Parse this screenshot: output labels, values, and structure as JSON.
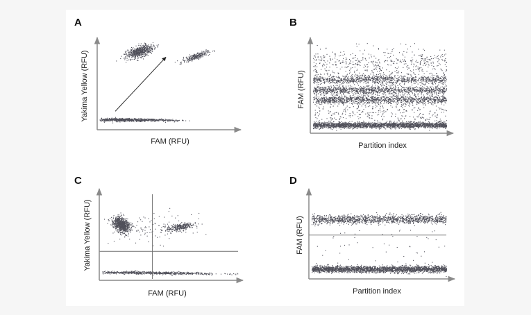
{
  "figure": {
    "panels": [
      "A",
      "B",
      "C",
      "D"
    ]
  },
  "colors": {
    "dots": "#50505a",
    "axis": "#8a8a8a",
    "threshold": "#6e6e6e"
  },
  "chart_data": [
    {
      "panel": "A",
      "type": "scatter",
      "xlabel": "FAM  (RFU)",
      "ylabel": "Yakima Yellow (RFU)",
      "xlim": [
        0,
        100
      ],
      "ylim": [
        0,
        100
      ],
      "ticks": false,
      "grid": false,
      "clusters": [
        {
          "cx": 18,
          "cy": 8,
          "sx": 14,
          "sy": 0.9,
          "rot": -1,
          "n": 700
        },
        {
          "cx": 30,
          "cy": 90,
          "sx": 5.5,
          "sy": 2.8,
          "rot": 34,
          "n": 650
        },
        {
          "cx": 72,
          "cy": 84,
          "sx": 5.5,
          "sy": 1.6,
          "rot": 30,
          "n": 260
        },
        {
          "cx": 45,
          "cy": 8,
          "sx": 10,
          "sy": 0.6,
          "rot": -2,
          "n": 150
        }
      ],
      "arrow": {
        "from": [
          12,
          18
        ],
        "to": [
          50,
          83
        ]
      }
    },
    {
      "panel": "B",
      "type": "scatter",
      "xlabel": "Partition index",
      "ylabel": "FAM  (RFU)",
      "xlim": [
        0,
        1000
      ],
      "ylim": [
        0,
        100
      ],
      "ticks": false,
      "grid": false,
      "bands": [
        {
          "y": 8,
          "sd": 1.6,
          "n": 2200
        },
        {
          "y": 37,
          "sd": 2.3,
          "n": 1100
        },
        {
          "y": 48,
          "sd": 2.3,
          "n": 1100
        },
        {
          "y": 60,
          "sd": 2.6,
          "n": 1000
        },
        {
          "y": 78,
          "sd": 9,
          "n": 520
        },
        {
          "y": 25,
          "sd": 10,
          "n": 420
        }
      ]
    },
    {
      "panel": "C",
      "type": "scatter",
      "xlabel": "FAM  (RFU)",
      "ylabel": "Yakima Yellow (RFU)",
      "xlim": [
        0,
        100
      ],
      "ylim": [
        0,
        100
      ],
      "ticks": false,
      "grid": false,
      "clusters": [
        {
          "cx": 14,
          "cy": 65,
          "sx": 2.8,
          "sy": 5.0,
          "rot": 20,
          "n": 800
        },
        {
          "cx": 57,
          "cy": 62,
          "sx": 5.0,
          "sy": 2.1,
          "rot": 20,
          "n": 280
        },
        {
          "cx": 35,
          "cy": 6,
          "sx": 26,
          "sy": 0.8,
          "rot": -1,
          "n": 700
        },
        {
          "cx": 38,
          "cy": 60,
          "sx": 14,
          "sy": 9,
          "rot": 0,
          "n": 110
        }
      ],
      "thresholds": {
        "x": 37,
        "y": 32
      }
    },
    {
      "panel": "D",
      "type": "scatter",
      "xlabel": "Partition index",
      "ylabel": "FAM  (RFU)",
      "xlim": [
        0,
        1000
      ],
      "ylim": [
        0,
        100
      ],
      "ticks": false,
      "grid": false,
      "bands": [
        {
          "y": 9,
          "sd": 2.0,
          "n": 2400
        },
        {
          "y": 71,
          "sd": 2.6,
          "n": 1300
        },
        {
          "y": 40,
          "sd": 22,
          "n": 60
        }
      ],
      "threshold_y": 51
    }
  ]
}
